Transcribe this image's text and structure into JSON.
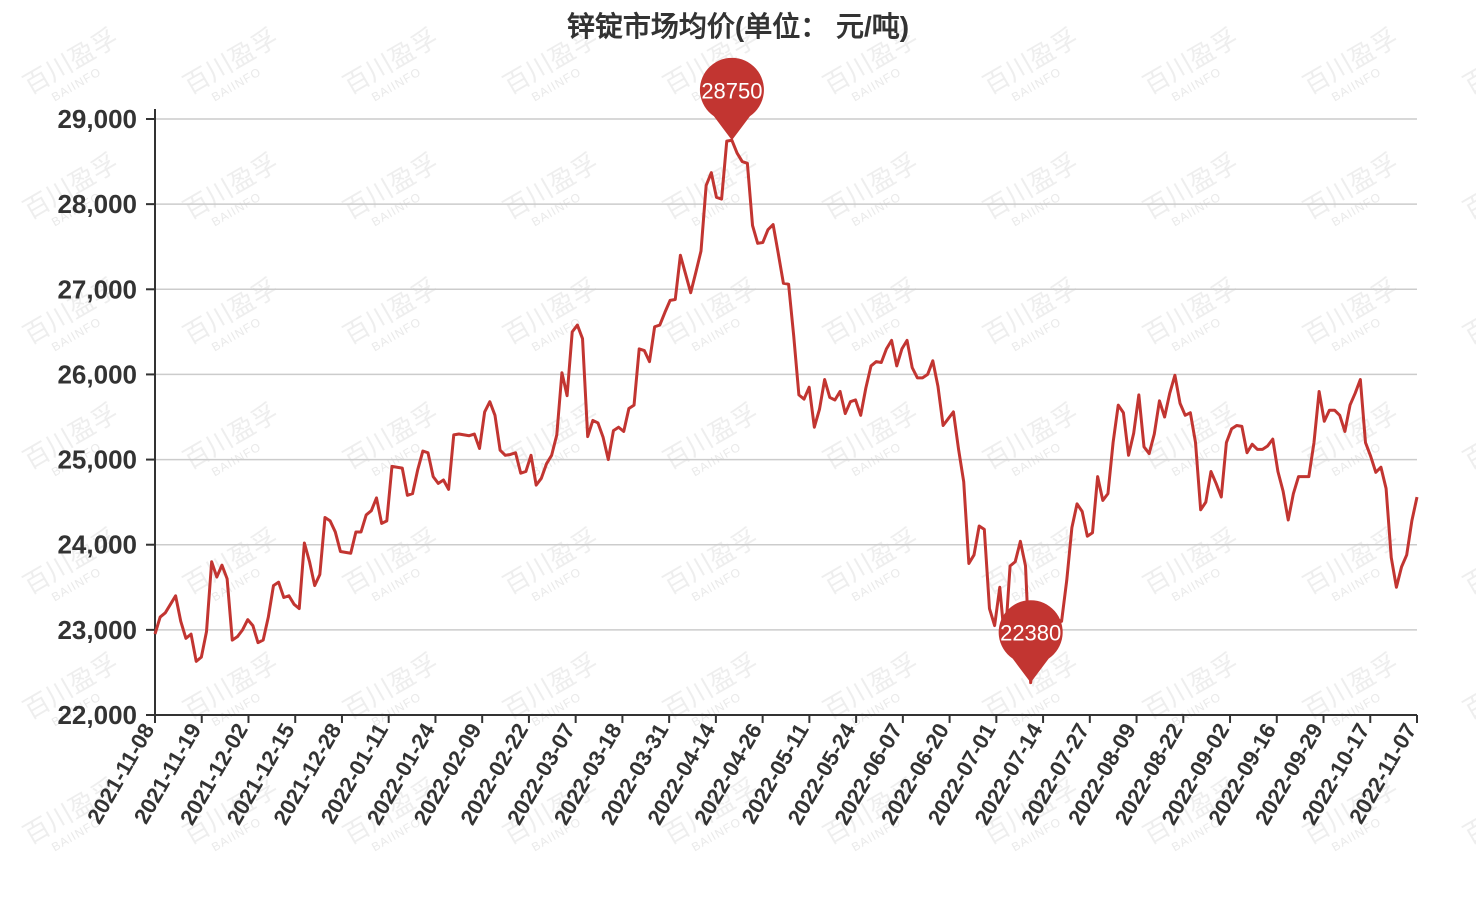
{
  "watermark": {
    "text": "百川盈孚",
    "subtext": "BAIINFO"
  },
  "chart_data": {
    "type": "line",
    "title": "锌锭市场均价(单位： 元/吨)",
    "xlabel": "",
    "ylabel": "",
    "ylim": [
      22000,
      29000
    ],
    "yticks": [
      "22,000",
      "23,000",
      "24,000",
      "25,000",
      "26,000",
      "27,000",
      "28,000",
      "29,000"
    ],
    "x_tick_labels": [
      "2021-11-08",
      "2021-11-19",
      "2021-12-02",
      "2021-12-15",
      "2021-12-28",
      "2022-01-11",
      "2022-01-24",
      "2022-02-09",
      "2022-02-22",
      "2022-03-07",
      "2022-03-18",
      "2022-03-31",
      "2022-04-14",
      "2022-04-26",
      "2022-05-11",
      "2022-05-24",
      "2022-06-07",
      "2022-06-20",
      "2022-07-01",
      "2022-07-14",
      "2022-07-27",
      "2022-08-09",
      "2022-08-22",
      "2022-09-02",
      "2022-09-16",
      "2022-09-29",
      "2022-10-17",
      "2022-11-07"
    ],
    "grid": true,
    "color": "#c23531",
    "series": [
      {
        "values": [
          22950,
          23150,
          23200,
          23300,
          23400,
          23100,
          22900,
          22950,
          22630,
          22680,
          22980,
          23800,
          23620,
          23760,
          23600,
          22880,
          22920,
          23000,
          23120,
          23050,
          22850,
          22880,
          23150,
          23520,
          23560,
          23380,
          23400,
          23300,
          23250,
          24020,
          23800,
          23520,
          23650,
          24320,
          24280,
          24150,
          23920,
          23910,
          23900,
          24150,
          24150,
          24350,
          24400,
          24550,
          24250,
          24280,
          24920,
          24910,
          24900,
          24580,
          24600,
          24880,
          25100,
          25080,
          24800,
          24720,
          24760,
          24650,
          25290,
          25300,
          25290,
          25280,
          25300,
          25130,
          25560,
          25680,
          25520,
          25110,
          25050,
          25060,
          25080,
          24840,
          24860,
          25050,
          24700,
          24780,
          24950,
          25050,
          25290,
          26020,
          25750,
          26500,
          26580,
          26420,
          25270,
          25460,
          25430,
          25260,
          25000,
          25340,
          25380,
          25330,
          25600,
          25640,
          26300,
          26280,
          26150,
          26560,
          26580,
          26730,
          26870,
          26880,
          27400,
          27180,
          26960,
          27200,
          27450,
          28220,
          28370,
          28080,
          28060,
          28740,
          28750,
          28600,
          28500,
          28480,
          27750,
          27540,
          27550,
          27700,
          27760,
          27420,
          27070,
          27060,
          26450,
          25760,
          25710,
          25850,
          25380,
          25590,
          25940,
          25730,
          25700,
          25800,
          25540,
          25680,
          25700,
          25520,
          25840,
          26100,
          26150,
          26140,
          26300,
          26400,
          26100,
          26300,
          26400,
          26080,
          25960,
          25960,
          26000,
          26160,
          25860,
          25400,
          25480,
          25560,
          25120,
          24740,
          23780,
          23880,
          24220,
          24180,
          23250,
          23050,
          23500,
          22840,
          23750,
          23800,
          24040,
          23750,
          22380,
          22850,
          23050,
          23080,
          23100,
          23120,
          23100,
          23580,
          24200,
          24480,
          24390,
          24100,
          24140,
          24800,
          24520,
          24600,
          25200,
          25640,
          25550,
          25050,
          25310,
          25760,
          25150,
          25070,
          25300,
          25690,
          25500,
          25780,
          25990,
          25660,
          25520,
          25550,
          25200,
          24410,
          24500,
          24860,
          24720,
          24560,
          25200,
          25360,
          25400,
          25390,
          25080,
          25180,
          25120,
          25120,
          25160,
          25240,
          24860,
          24630,
          24290,
          24600,
          24800,
          24800,
          24800,
          25200,
          25800,
          25450,
          25580,
          25580,
          25520,
          25330,
          25640,
          25780,
          25940,
          25200,
          25040,
          24850,
          24910,
          24660,
          23850,
          23500,
          23740,
          23880,
          24280,
          24560
        ]
      }
    ],
    "markers": [
      {
        "type": "max",
        "value": 28750,
        "label": "28750"
      },
      {
        "type": "min",
        "value": 22380,
        "label": "22380"
      }
    ]
  }
}
